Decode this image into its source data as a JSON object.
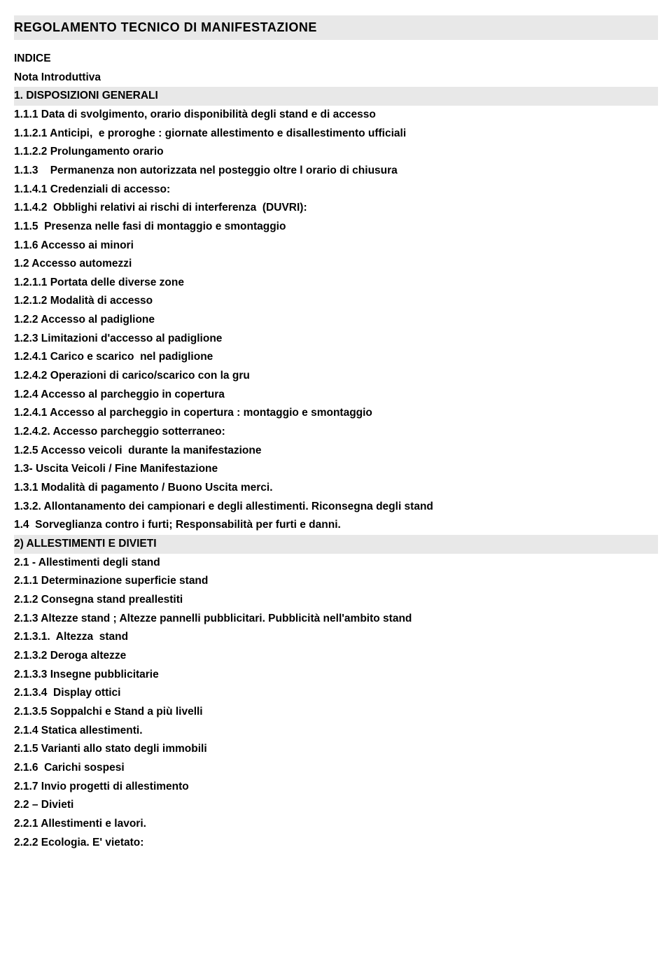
{
  "title": "REGOLAMENTO TECNICO DI MANIFESTAZIONE",
  "indexLabel": "INDICE",
  "introLabel": "Nota Introduttiva",
  "section1Header": "1. DISPOSIZIONI GENERALI",
  "section2Header": "2) ALLESTIMENTI E DIVIETI",
  "entries1": [
    "1.1.1 Data di svolgimento, orario disponibilità degli stand e di accesso",
    "1.1.2.1 Anticipi,  e proroghe : giornate allestimento e disallestimento ufficiali",
    "1.1.2.2 Prolungamento orario",
    "1.1.3    Permanenza non autorizzata nel posteggio oltre l orario di chiusura",
    "1.1.4.1 Credenziali di accesso:",
    "1.1.4.2  Obblighi relativi ai rischi di interferenza  (DUVRI):",
    "1.1.5  Presenza nelle fasi di montaggio e smontaggio",
    "1.1.6 Accesso ai minori",
    "1.2 Accesso automezzi",
    "1.2.1.1 Portata delle diverse zone",
    "1.2.1.2 Modalità di accesso",
    "1.2.2 Accesso al padiglione",
    "1.2.3 Limitazioni d'accesso al padiglione",
    "1.2.4.1 Carico e scarico  nel padiglione",
    "1.2.4.2 Operazioni di carico/scarico con la gru",
    "1.2.4 Accesso al parcheggio in copertura",
    "1.2.4.1 Accesso al parcheggio in copertura : montaggio e smontaggio",
    "1.2.4.2. Accesso parcheggio sotterraneo:",
    "1.2.5 Accesso veicoli  durante la manifestazione",
    "1.3- Uscita Veicoli / Fine Manifestazione",
    "1.3.1 Modalità di pagamento / Buono Uscita merci.",
    "1.3.2. Allontanamento dei campionari e degli allestimenti. Riconsegna degli stand",
    "1.4  Sorveglianza contro i furti; Responsabilità per furti e danni."
  ],
  "entries2": [
    "2.1 - Allestimenti degli stand",
    "2.1.1 Determinazione superficie stand",
    "2.1.2 Consegna stand preallestiti",
    "2.1.3 Altezze stand ; Altezze pannelli pubblicitari. Pubblicità nell'ambito stand",
    "2.1.3.1.  Altezza  stand",
    "2.1.3.2 Deroga altezze",
    "2.1.3.3 Insegne pubblicitarie",
    "2.1.3.4  Display ottici",
    "2.1.3.5 Soppalchi e Stand a più livelli",
    "2.1.4 Statica allestimenti.",
    "2.1.5 Varianti allo stato degli immobili",
    "2.1.6  Carichi sospesi",
    "2.1.7 Invio progetti di allestimento",
    "2.2 – Divieti",
    "2.2.1 Allestimenti e lavori.",
    "2.2.2 Ecologia. E' vietato:"
  ]
}
